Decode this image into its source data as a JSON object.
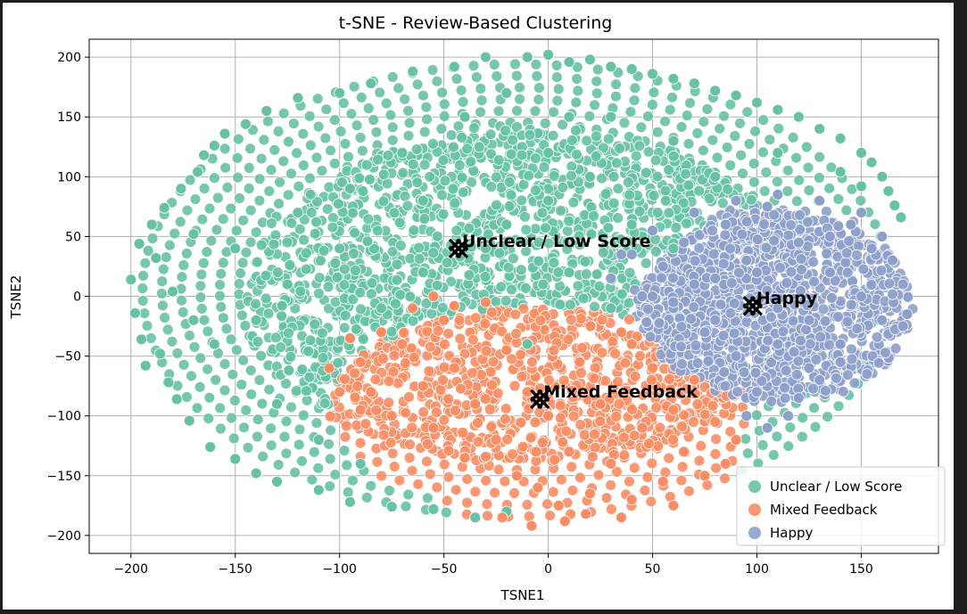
{
  "chart_data": {
    "type": "scatter",
    "title": "t-SNE - Review-Based Clustering",
    "xlabel": "TSNE1",
    "ylabel": "TSNE2",
    "xlim": [
      -220,
      187
    ],
    "ylim": [
      -215,
      215
    ],
    "xticks": [
      -200,
      -150,
      -100,
      -50,
      0,
      50,
      100,
      150
    ],
    "yticks": [
      -200,
      -150,
      -100,
      -50,
      0,
      50,
      100,
      150,
      200
    ],
    "xtick_labels": [
      "−200",
      "−150",
      "−100",
      "−50",
      "0",
      "50",
      "100",
      "150"
    ],
    "ytick_labels": [
      "−200",
      "−150",
      "−100",
      "−50",
      "0",
      "50",
      "100",
      "150",
      "200"
    ],
    "grid": true,
    "legend_position": "lower-right",
    "series": [
      {
        "name": "Unclear / Low Score",
        "color": "#66c2a5",
        "region": "ellipse",
        "points": [
          [
            -200,
            14
          ],
          [
            -198,
            -14
          ],
          [
            -196,
            44
          ],
          [
            -195,
            -36
          ],
          [
            -193,
            -58
          ],
          [
            -190,
            60
          ],
          [
            -188,
            32
          ],
          [
            -186,
            -48
          ],
          [
            -184,
            74
          ],
          [
            -182,
            -72
          ],
          [
            -180,
            4
          ],
          [
            -178,
            -86
          ],
          [
            -176,
            90
          ],
          [
            -172,
            -104
          ],
          [
            -170,
            52
          ],
          [
            -168,
            104
          ],
          [
            -165,
            118
          ],
          [
            -162,
            -126
          ],
          [
            -160,
            126
          ],
          [
            -155,
            136
          ],
          [
            -150,
            -136
          ],
          [
            -145,
            144
          ],
          [
            -140,
            -148
          ],
          [
            -135,
            155
          ],
          [
            -130,
            -155
          ],
          [
            -120,
            166
          ],
          [
            -110,
            -162
          ],
          [
            -100,
            170
          ],
          [
            -95,
            -172
          ],
          [
            -85,
            178
          ],
          [
            -75,
            -176
          ],
          [
            -65,
            188
          ],
          [
            -55,
            -178
          ],
          [
            -45,
            192
          ],
          [
            -35,
            -185
          ],
          [
            -30,
            200
          ],
          [
            -20,
            -180
          ],
          [
            -10,
            200
          ],
          [
            0,
            202
          ],
          [
            10,
            196
          ],
          [
            20,
            198
          ],
          [
            30,
            192
          ],
          [
            40,
            190
          ],
          [
            50,
            186
          ],
          [
            60,
            182
          ],
          [
            70,
            178
          ],
          [
            80,
            172
          ],
          [
            90,
            168
          ],
          [
            100,
            162
          ],
          [
            110,
            156
          ],
          [
            120,
            150
          ],
          [
            130,
            140
          ],
          [
            140,
            132
          ],
          [
            150,
            120
          ],
          [
            155,
            112
          ],
          [
            160,
            100
          ],
          [
            163,
            88
          ],
          [
            166,
            76
          ],
          [
            169,
            66
          ],
          [
            150,
            92
          ],
          [
            140,
            104
          ],
          [
            -30,
            40
          ],
          [
            -20,
            60
          ],
          [
            0,
            80
          ],
          [
            20,
            100
          ],
          [
            -60,
            20
          ],
          [
            -80,
            -10
          ],
          [
            -100,
            40
          ],
          [
            -120,
            70
          ],
          [
            -140,
            -20
          ],
          [
            -130,
            -90
          ],
          [
            -110,
            -120
          ],
          [
            -90,
            -140
          ],
          [
            -70,
            120
          ],
          [
            -40,
            150
          ],
          [
            10,
            150
          ],
          [
            60,
            130
          ],
          [
            40,
            60
          ],
          [
            10,
            20
          ],
          [
            -10,
            -40
          ],
          [
            30,
            -10
          ],
          [
            60,
            40
          ],
          [
            80,
            100
          ],
          [
            110,
            120
          ],
          [
            -150,
            40
          ],
          [
            -160,
            -40
          ],
          [
            -170,
            -20
          ],
          [
            -125,
            10
          ],
          [
            -95,
            90
          ],
          [
            -60,
            80
          ],
          [
            0,
            120
          ],
          [
            30,
            150
          ],
          [
            -20,
            170
          ]
        ]
      },
      {
        "name": "Mixed Feedback",
        "color": "#fc8d62",
        "region": "lower-center",
        "points": [
          [
            -95,
            -35
          ],
          [
            -90,
            -55
          ],
          [
            -85,
            -80
          ],
          [
            -80,
            -30
          ],
          [
            -75,
            -100
          ],
          [
            -70,
            -40
          ],
          [
            -60,
            -75
          ],
          [
            -55,
            -110
          ],
          [
            -50,
            -20
          ],
          [
            -45,
            -60
          ],
          [
            -40,
            -135
          ],
          [
            -35,
            -90
          ],
          [
            -30,
            -5
          ],
          [
            -25,
            -120
          ],
          [
            -20,
            -45
          ],
          [
            -15,
            -150
          ],
          [
            -10,
            -80
          ],
          [
            -5,
            -160
          ],
          [
            0,
            -100
          ],
          [
            5,
            -175
          ],
          [
            10,
            -130
          ],
          [
            15,
            -55
          ],
          [
            20,
            -165
          ],
          [
            25,
            -90
          ],
          [
            30,
            -140
          ],
          [
            35,
            -30
          ],
          [
            40,
            -170
          ],
          [
            45,
            -110
          ],
          [
            50,
            -60
          ],
          [
            55,
            -155
          ],
          [
            60,
            -95
          ],
          [
            65,
            -130
          ],
          [
            70,
            -70
          ],
          [
            75,
            -150
          ],
          [
            80,
            -105
          ],
          [
            85,
            -140
          ],
          [
            90,
            -120
          ],
          [
            -22,
            -185
          ],
          [
            -8,
            -192
          ],
          [
            8,
            -188
          ],
          [
            18,
            -182
          ],
          [
            -65,
            -10
          ],
          [
            -55,
            0
          ],
          [
            -45,
            -8
          ],
          [
            -90,
            -95
          ],
          [
            40,
            -40
          ],
          [
            -100,
            -80
          ],
          [
            -105,
            -60
          ],
          [
            60,
            -175
          ],
          [
            35,
            -185
          ]
        ]
      },
      {
        "name": "Happy",
        "color": "#8da0cb",
        "region": "right",
        "points": [
          [
            30,
            15
          ],
          [
            40,
            35
          ],
          [
            45,
            0
          ],
          [
            50,
            55
          ],
          [
            55,
            25
          ],
          [
            60,
            -10
          ],
          [
            65,
            45
          ],
          [
            70,
            70
          ],
          [
            75,
            -30
          ],
          [
            80,
            15
          ],
          [
            85,
            60
          ],
          [
            90,
            -50
          ],
          [
            95,
            30
          ],
          [
            100,
            -80
          ],
          [
            105,
            75
          ],
          [
            110,
            -10
          ],
          [
            115,
            -100
          ],
          [
            120,
            45
          ],
          [
            125,
            -60
          ],
          [
            130,
            80
          ],
          [
            135,
            20
          ],
          [
            140,
            -40
          ],
          [
            145,
            60
          ],
          [
            150,
            0
          ],
          [
            155,
            40
          ],
          [
            160,
            -20
          ],
          [
            165,
            30
          ],
          [
            170,
            10
          ],
          [
            172,
            -15
          ],
          [
            170,
            -25
          ],
          [
            160,
            50
          ],
          [
            150,
            70
          ],
          [
            120,
            -85
          ],
          [
            105,
            -110
          ],
          [
            95,
            -100
          ],
          [
            130,
            -70
          ],
          [
            140,
            -55
          ],
          [
            110,
            85
          ],
          [
            90,
            80
          ],
          [
            70,
            10
          ],
          [
            60,
            -5
          ],
          [
            35,
            35
          ],
          [
            50,
            0
          ],
          [
            100,
            20
          ],
          [
            125,
            -20
          ],
          [
            135,
            50
          ],
          [
            110,
            -40
          ],
          [
            80,
            -20
          ]
        ]
      }
    ],
    "annotations": [
      {
        "label": "Unclear / Low Score",
        "x": -43,
        "y": 40
      },
      {
        "label": "Mixed Feedback",
        "x": -4,
        "y": -86
      },
      {
        "label": "Happy",
        "x": 98,
        "y": -8
      }
    ]
  }
}
